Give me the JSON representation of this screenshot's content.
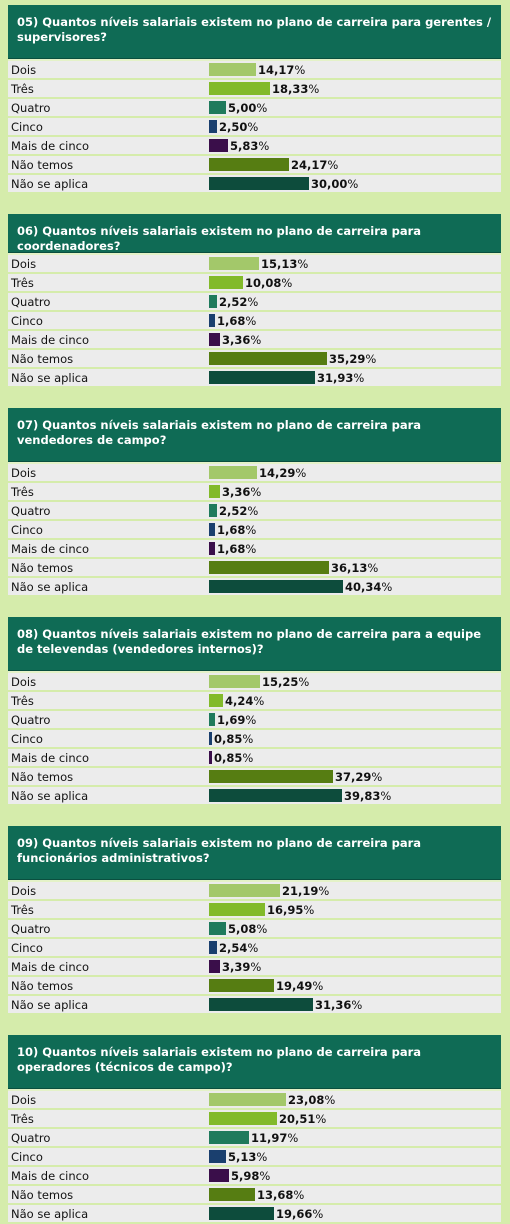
{
  "colors": {
    "Dois": "#a3c86a",
    "Três": "#82ba2a",
    "Quatro": "#1f7a5c",
    "Cinco": "#1a3f6e",
    "Mais de cinco": "#3a0e4a",
    "Não temos": "#567d12",
    "Não se aplica": "#0d4c3c"
  },
  "chart_data": [
    {
      "type": "bar",
      "title": "05) Quantos níveis salariais existem no plano de carreira para gerentes / supervisores?",
      "categories": [
        "Dois",
        "Três",
        "Quatro",
        "Cinco",
        "Mais de cinco",
        "Não temos",
        "Não se aplica"
      ],
      "values": [
        14.17,
        18.33,
        5.0,
        2.5,
        5.83,
        24.17,
        30.0
      ],
      "value_labels": [
        "14,17",
        "18,33",
        "5,00",
        "2,50",
        "5,83",
        "24,17",
        "30,00"
      ]
    },
    {
      "type": "bar",
      "title": "06) Quantos níveis salariais existem no plano de carreira para coordenadores?",
      "categories": [
        "Dois",
        "Três",
        "Quatro",
        "Cinco",
        "Mais de cinco",
        "Não temos",
        "Não se aplica"
      ],
      "values": [
        15.13,
        10.08,
        2.52,
        1.68,
        3.36,
        35.29,
        31.93
      ],
      "value_labels": [
        "15,13",
        "10,08",
        "2,52",
        "1,68",
        "3,36",
        "35,29",
        "31,93"
      ]
    },
    {
      "type": "bar",
      "title": "07) Quantos níveis salariais existem no plano de carreira para vendedores de campo?",
      "categories": [
        "Dois",
        "Três",
        "Quatro",
        "Cinco",
        "Mais de cinco",
        "Não temos",
        "Não se aplica"
      ],
      "values": [
        14.29,
        3.36,
        2.52,
        1.68,
        1.68,
        36.13,
        40.34
      ],
      "value_labels": [
        "14,29",
        "3,36",
        "2,52",
        "1,68",
        "1,68",
        "36,13",
        "40,34"
      ]
    },
    {
      "type": "bar",
      "title": "08) Quantos níveis salariais existem no plano de carreira para a equipe de televendas (vendedores internos)?",
      "categories": [
        "Dois",
        "Três",
        "Quatro",
        "Cinco",
        "Mais de cinco",
        "Não temos",
        "Não se aplica"
      ],
      "values": [
        15.25,
        4.24,
        1.69,
        0.85,
        0.85,
        37.29,
        39.83
      ],
      "value_labels": [
        "15,25",
        "4,24",
        "1,69",
        "0,85",
        "0,85",
        "37,29",
        "39,83"
      ]
    },
    {
      "type": "bar",
      "title": "09) Quantos níveis salariais existem no plano de carreira para funcionários administrativos?",
      "categories": [
        "Dois",
        "Três",
        "Quatro",
        "Cinco",
        "Mais de cinco",
        "Não temos",
        "Não se aplica"
      ],
      "values": [
        21.19,
        16.95,
        5.08,
        2.54,
        3.39,
        19.49,
        31.36
      ],
      "value_labels": [
        "21,19",
        "16,95",
        "5,08",
        "2,54",
        "3,39",
        "19,49",
        "31,36"
      ]
    },
    {
      "type": "bar",
      "title": "10) Quantos níveis salariais existem no plano de carreira para operadores (técnicos de campo)?",
      "categories": [
        "Dois",
        "Três",
        "Quatro",
        "Cinco",
        "Mais de cinco",
        "Não temos",
        "Não se aplica"
      ],
      "values": [
        23.08,
        20.51,
        11.97,
        5.13,
        5.98,
        13.68,
        19.66
      ],
      "value_labels": [
        "23,08",
        "20,51",
        "11,97",
        "5,13",
        "5,98",
        "13,68",
        "19,66"
      ]
    }
  ],
  "unit": "%"
}
